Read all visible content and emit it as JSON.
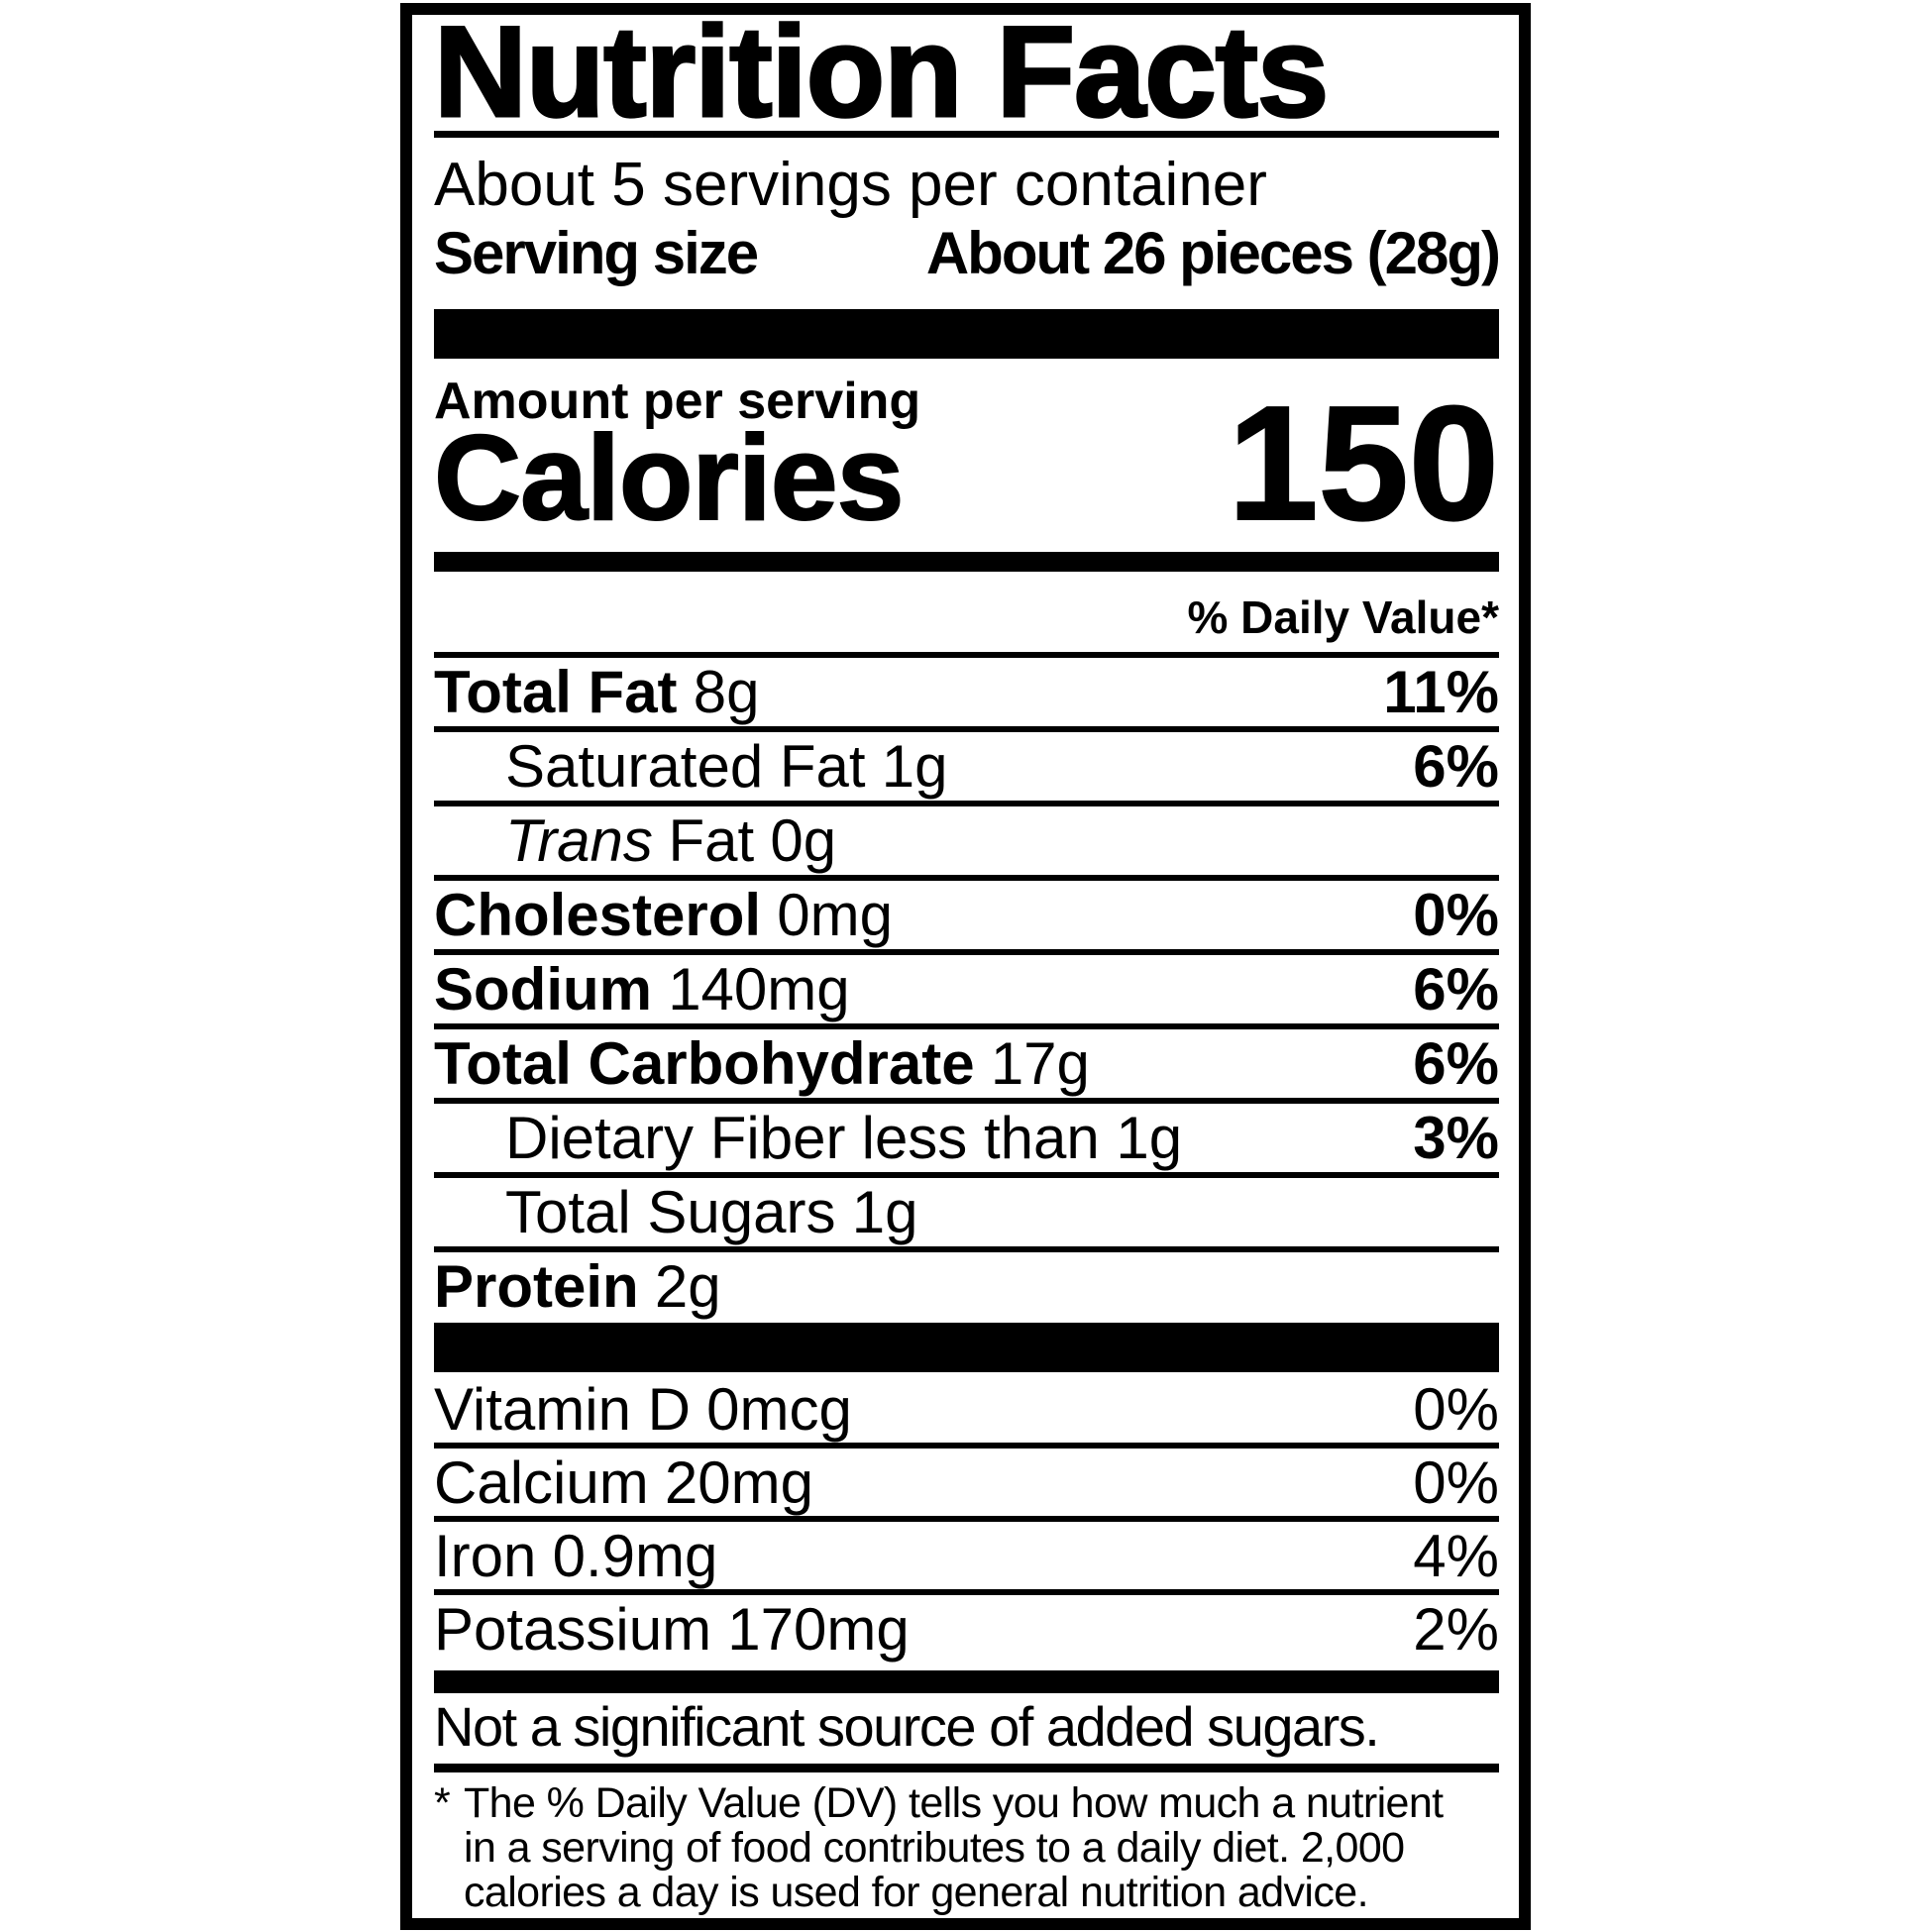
{
  "colors": {
    "ink": "#000000",
    "paper": "#ffffff"
  },
  "label": {
    "title": "Nutrition Facts",
    "servings_per_container": "About 5 servings per container",
    "serving_size": {
      "label": "Serving size",
      "value": "About 26 pieces (28g)"
    },
    "amount_per_serving": "Amount per serving",
    "calories": {
      "label": "Calories",
      "value": "150"
    },
    "daily_value_header": "% Daily Value*",
    "nutrient_rows": [
      {
        "italic_prefix": "",
        "name": "Total Fat",
        "amount": "8g",
        "dv": "11%"
      },
      {
        "italic_prefix": "",
        "name": "Saturated Fat",
        "amount": "1g",
        "dv": "6%"
      },
      {
        "italic_prefix": "Trans",
        "name": "Fat",
        "amount": "0g",
        "dv": ""
      },
      {
        "italic_prefix": "",
        "name": "Cholesterol",
        "amount": "0mg",
        "dv": "0%"
      },
      {
        "italic_prefix": "",
        "name": "Sodium",
        "amount": "140mg",
        "dv": "6%"
      },
      {
        "italic_prefix": "",
        "name": "Total Carbohydrate",
        "amount": "17g",
        "dv": "6%"
      },
      {
        "italic_prefix": "",
        "name": "Dietary Fiber",
        "amount": "less than 1g",
        "dv": "3%"
      },
      {
        "italic_prefix": "",
        "name": "Total Sugars",
        "amount": "1g",
        "dv": ""
      },
      {
        "italic_prefix": "",
        "name": "Protein",
        "amount": "2g",
        "dv": ""
      }
    ],
    "vitamin_rows": [
      {
        "name": "Vitamin D",
        "amount": "0mcg",
        "dv": "0%"
      },
      {
        "name": "Calcium",
        "amount": "20mg",
        "dv": "0%"
      },
      {
        "name": "Iron",
        "amount": "0.9mg",
        "dv": "4%"
      },
      {
        "name": "Potassium",
        "amount": "170mg",
        "dv": "2%"
      }
    ],
    "note": "Not a significant source of added sugars.",
    "footnote": {
      "marker": "*",
      "lines": [
        "The % Daily Value (DV) tells you how much a nutrient",
        "in a serving of food contributes to a daily diet. 2,000",
        "calories a day is used for general nutrition advice."
      ]
    }
  }
}
